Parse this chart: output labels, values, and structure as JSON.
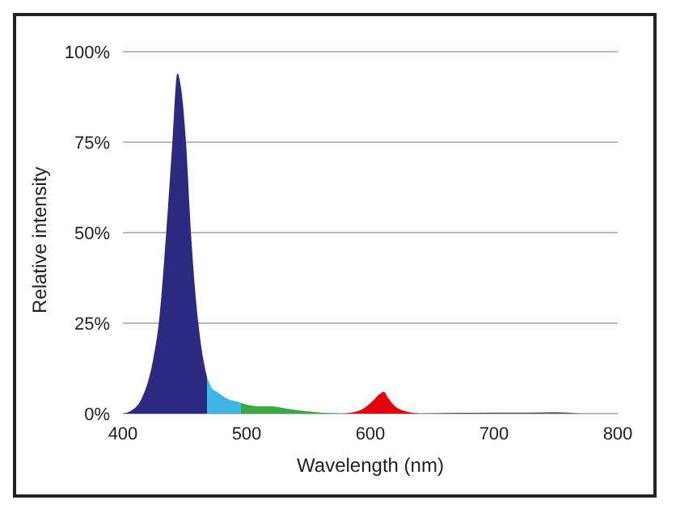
{
  "chart_data": {
    "type": "area",
    "xlabel": "Wavelength (nm)",
    "ylabel": "Relative intensity",
    "xlim": [
      400,
      800
    ],
    "xticks": [
      400,
      500,
      600,
      700,
      800
    ],
    "ylim": [
      0,
      100
    ],
    "yticks": [
      {
        "value": 0,
        "label": "0%"
      },
      {
        "value": 25,
        "label": "25%"
      },
      {
        "value": 50,
        "label": "50%"
      },
      {
        "value": 75,
        "label": "75%"
      },
      {
        "value": 100,
        "label": "100%"
      }
    ],
    "grid": "y",
    "legend": false,
    "series": [
      {
        "color": "#2b2a80",
        "x": [
          400,
          405,
          415,
          425,
          429,
          435,
          440,
          444,
          447,
          451,
          455,
          461,
          465,
          468
        ],
        "values": [
          0,
          0.5,
          4,
          16,
          25,
          50,
          75,
          94,
          90,
          75,
          50,
          25,
          15,
          10
        ]
      },
      {
        "color": "#40b4e4",
        "x": [
          468,
          472,
          476,
          480,
          485,
          490,
          495
        ],
        "values": [
          10,
          7,
          6,
          5,
          4,
          3.5,
          3
        ]
      },
      {
        "color": "#3aa845",
        "x": [
          495,
          500,
          510,
          520,
          530,
          540,
          550,
          560,
          575
        ],
        "values": [
          3,
          2.5,
          2,
          2,
          1.5,
          1,
          0.6,
          0.3,
          0
        ]
      },
      {
        "color": "#e0000e",
        "x": [
          575,
          585,
          595,
          602,
          608,
          611,
          614,
          620,
          630,
          640
        ],
        "values": [
          0,
          0.3,
          1.5,
          3.5,
          5.5,
          6,
          4.5,
          2,
          0.5,
          0
        ]
      },
      {
        "color": "#555555",
        "x": [
          640,
          670,
          700,
          730,
          750,
          770
        ],
        "values": [
          0,
          0.2,
          0.3,
          0.3,
          0.4,
          0
        ]
      }
    ]
  }
}
